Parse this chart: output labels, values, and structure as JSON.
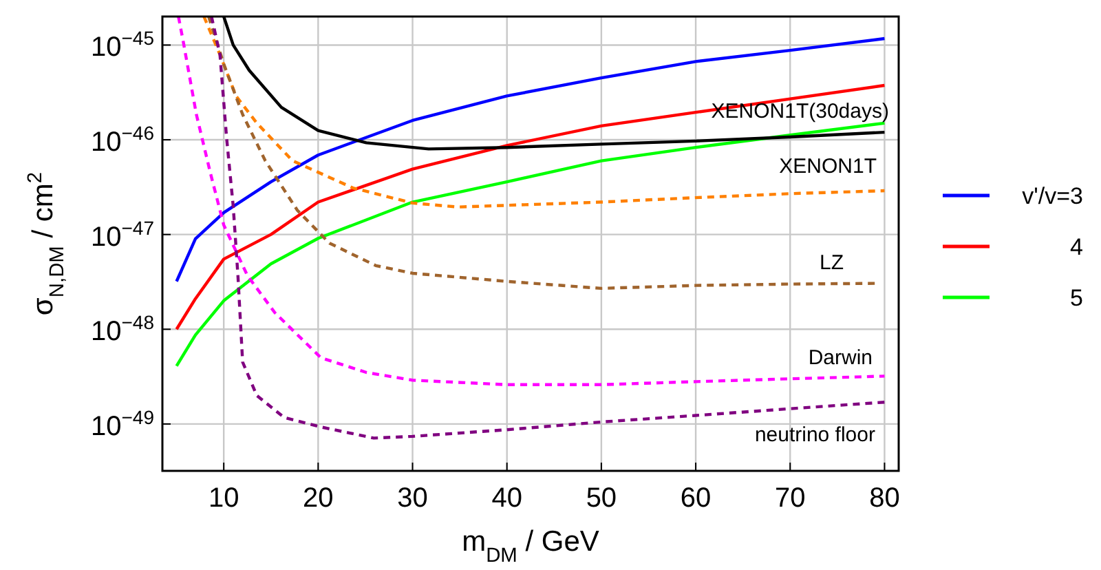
{
  "chart_data": {
    "type": "line",
    "xlabel": "m$_{DM}$ / GeV",
    "ylabel": "σ$_{N,DM}$ / cm$^{2}$",
    "log": "y",
    "grid": true,
    "legend": "right",
    "xlim": [
      3.5,
      81.5
    ],
    "xticks": [
      10,
      20,
      30,
      40,
      50,
      60,
      70,
      80
    ],
    "ylim": [
      3.2e-50,
      2e-45
    ],
    "yticks": [
      {
        "value": 1e-45,
        "label": "10$^{−45}$"
      },
      {
        "value": 1e-46,
        "label": "10$^{−46}$"
      },
      {
        "value": 1e-47,
        "label": "10$^{−47}$"
      },
      {
        "value": 1e-48,
        "label": "10$^{−48}$"
      },
      {
        "value": 1e-49,
        "label": "10$^{−49}$"
      }
    ],
    "series": [
      {
        "name": "v'/v=3",
        "color": "#0000ff",
        "line_style": "solid",
        "x": [
          5,
          7,
          10,
          15,
          20,
          30,
          40,
          50,
          60,
          70,
          80
        ],
        "values": [
          3.2e-48,
          9e-48,
          1.7e-47,
          3.6e-47,
          6.9e-47,
          1.6e-46,
          2.9e-46,
          4.5e-46,
          6.7e-46,
          8.8e-46,
          1.17e-45
        ]
      },
      {
        "name": "4",
        "color": "#ff0000",
        "line_style": "solid",
        "x": [
          5,
          7,
          10,
          15,
          20,
          30,
          40,
          50,
          60,
          70,
          80
        ],
        "values": [
          1e-48,
          2.1e-48,
          5.5e-48,
          1e-47,
          2.2e-47,
          4.9e-47,
          8.7e-47,
          1.4e-46,
          1.95e-46,
          2.7e-46,
          3.75e-46
        ]
      },
      {
        "name": "5",
        "color": "#00ff00",
        "line_style": "solid",
        "x": [
          5,
          7,
          10,
          15,
          20,
          30,
          40,
          50,
          60,
          70,
          80
        ],
        "values": [
          4.1e-49,
          8.7e-49,
          2e-48,
          4.9e-48,
          9.1e-48,
          2.2e-47,
          3.6e-47,
          6e-47,
          8.3e-47,
          1.12e-46,
          1.5e-46
        ]
      },
      {
        "color": "#000000",
        "line_style": "solid",
        "x": [
          10,
          11,
          12.7,
          16.1,
          20,
          25.1,
          31.7,
          40,
          50,
          60,
          70,
          80
        ],
        "values": [
          2e-45,
          1e-45,
          5.4e-46,
          2.2e-46,
          1.25e-46,
          9.3e-47,
          8e-47,
          8.3e-47,
          9e-47,
          9.7e-47,
          1.07e-46,
          1.2e-46
        ]
      },
      {
        "color": "#ff8000",
        "line_style": "dashed",
        "x": [
          7.9,
          9.6,
          11.3,
          13.5,
          17.3,
          23.7,
          30,
          34.8,
          50,
          60,
          70,
          80
        ],
        "values": [
          2e-45,
          7.9e-46,
          2.9e-46,
          1.5e-46,
          6e-47,
          3.1e-47,
          2.15e-47,
          1.95e-47,
          2.2e-47,
          2.45e-47,
          2.7e-47,
          2.9e-47
        ]
      },
      {
        "color": "#a0642d",
        "line_style": "dashed",
        "x": [
          8.4,
          10,
          12,
          14.4,
          17.8,
          21.2,
          26.1,
          30,
          40,
          50,
          60,
          70,
          79
        ],
        "values": [
          2e-45,
          6.3e-46,
          1.85e-46,
          6e-47,
          1.8e-47,
          8.1e-48,
          4.7e-48,
          3.9e-48,
          3.2e-48,
          2.7e-48,
          2.9e-48,
          3e-48,
          3.05e-48
        ]
      },
      {
        "color": "#ff00ff",
        "line_style": "dashed",
        "x": [
          5.2,
          5.7,
          7.1,
          8.6,
          10,
          12.5,
          15.4,
          20.3,
          25.1,
          30,
          40,
          50,
          60,
          70,
          80
        ],
        "values": [
          2e-45,
          1.1e-45,
          1.85e-46,
          4.4e-47,
          1.26e-47,
          3.7e-48,
          1.5e-48,
          5e-49,
          3.5e-49,
          2.9e-49,
          2.6e-49,
          2.6e-49,
          2.8e-49,
          3e-49,
          3.2e-49
        ]
      },
      {
        "color": "#800080",
        "line_style": "dashed",
        "x": [
          8.7,
          9.6,
          10.3,
          11,
          11.5,
          12,
          13.5,
          16.4,
          20.3,
          25.9,
          30,
          40,
          50,
          60,
          70,
          80
        ],
        "values": [
          2e-45,
          7.9e-46,
          1.05e-46,
          2e-47,
          3.7e-48,
          4.5e-49,
          2e-49,
          1.17e-49,
          9.3e-50,
          7.1e-50,
          7.4e-50,
          8.7e-50,
          1.05e-49,
          1.23e-49,
          1.45e-49,
          1.7e-49
        ]
      }
    ],
    "annotations": [
      "XENON1T(30days)",
      "XENON1T",
      "LZ",
      "Darwin",
      "neutrino floor"
    ]
  }
}
